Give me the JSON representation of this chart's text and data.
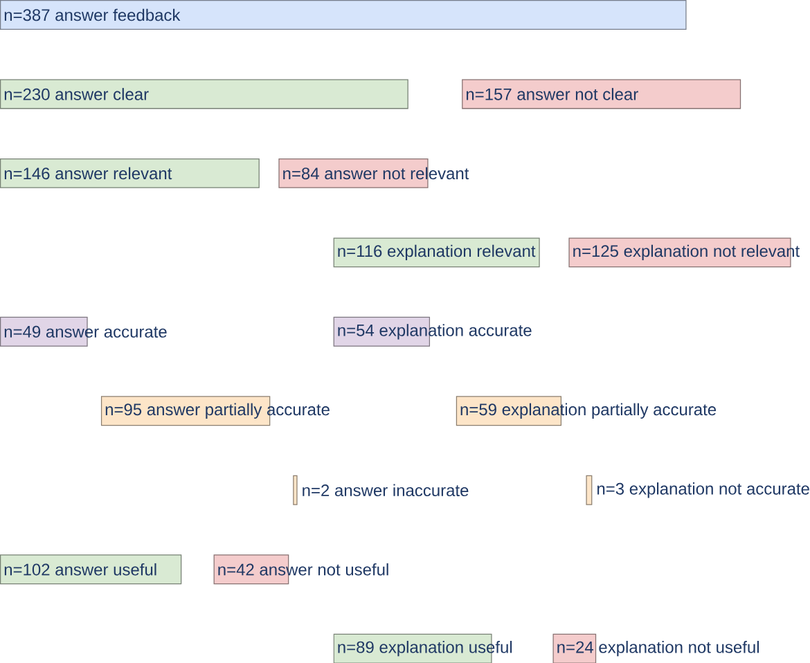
{
  "chart_data": {
    "type": "other",
    "categories": [
      "answer feedback",
      "answer clear",
      "answer not clear",
      "answer relevant",
      "answer not relevant",
      "explanation relevant",
      "explanation not relevant",
      "answer accurate",
      "explanation accurate",
      "answer partially accurate",
      "explanation partially accurate",
      "answer inaccurate",
      "explanation not accurate",
      "answer useful",
      "answer not useful",
      "explanation useful",
      "explanation not useful"
    ],
    "values": [
      387,
      230,
      157,
      146,
      84,
      116,
      125,
      49,
      54,
      95,
      59,
      2,
      3,
      102,
      42,
      89,
      24
    ],
    "value_labels": [
      "n=387",
      "n=230",
      "n=157",
      "n=146",
      "n=84",
      "n=116",
      "n=125",
      "n=49",
      "n=54",
      "n=95",
      "n=59",
      "n=2",
      "n=3",
      "n=102",
      "n=42",
      "n=89",
      "n=24"
    ],
    "colors": [
      "#d6e4fb",
      "#d9ead3",
      "#f4cccc",
      "#d9ead3",
      "#f4cccc",
      "#d9ead3",
      "#f4cccc",
      "#e1d5e7",
      "#e1d5e7",
      "#fde5c8",
      "#fde5c8",
      "#fde5c8",
      "#fde5c8",
      "#d9ead3",
      "#f4cccc",
      "#d9ead3",
      "#f4cccc"
    ]
  }
}
